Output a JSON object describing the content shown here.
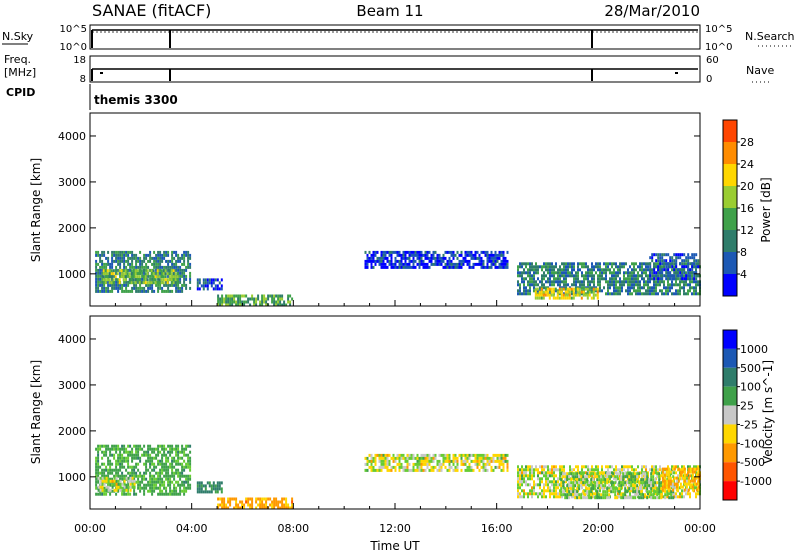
{
  "header": {
    "station": "SANAE (fitACF)",
    "beam": "Beam 11",
    "date": "28/Mar/2010"
  },
  "strip_nsky": {
    "left_label": "N.Sky",
    "ticks_left": [
      "10^5",
      "10^0"
    ],
    "ticks_right": [
      "10^5",
      "10^0"
    ],
    "right_label": "N.Search"
  },
  "strip_freq": {
    "left_label_1": "Freq.",
    "left_label_2": "[MHz]",
    "ticks_left": [
      "18",
      "8"
    ],
    "ticks_right": [
      "60",
      "0"
    ],
    "right_label": "Nave"
  },
  "cpid": {
    "label": "CPID",
    "value": "themis 3300"
  },
  "colors": {
    "power_scale": [
      "#0000ff",
      "#1c58b4",
      "#2f7d6b",
      "#3fa14a",
      "#9acd32",
      "#ffd700",
      "#ff8c00",
      "#ff4500",
      "#ff0000"
    ],
    "velocity_scale": [
      "#0000ff",
      "#1c58b4",
      "#2f7d6b",
      "#3fa14a",
      "#66cc33",
      "#c8c8c8",
      "#ffd700",
      "#ff9900",
      "#ff5500",
      "#ff0000"
    ]
  },
  "chart_data": [
    {
      "type": "heatmap",
      "panel": "power",
      "ylabel": "Slant Range [km]",
      "yticks": [
        "1000",
        "2000",
        "3000",
        "4000"
      ],
      "ylim": [
        300,
        4500
      ],
      "xlim": [
        "00:00",
        "24:00"
      ],
      "colorbar_label": "Power [dB]",
      "colorbar_ticks": [
        "4",
        "8",
        "12",
        "16",
        "20",
        "24",
        "28"
      ],
      "colorbar_range": [
        0,
        32
      ],
      "regions": [
        {
          "t": [
            0.2,
            4.0
          ],
          "r": [
            600,
            1500
          ],
          "value": 10
        },
        {
          "t": [
            0.5,
            3.5
          ],
          "r": [
            800,
            1100
          ],
          "value": 16
        },
        {
          "t": [
            4.2,
            5.2
          ],
          "r": [
            650,
            900
          ],
          "value": 6
        },
        {
          "t": [
            5.0,
            8.0
          ],
          "r": [
            300,
            550
          ],
          "value": 14
        },
        {
          "t": [
            10.8,
            16.5
          ],
          "r": [
            1100,
            1500
          ],
          "value": 4
        },
        {
          "t": [
            16.8,
            24.0
          ],
          "r": [
            550,
            1250
          ],
          "value": 10
        },
        {
          "t": [
            17.5,
            20.0
          ],
          "r": [
            450,
            700
          ],
          "value": 20
        },
        {
          "t": [
            22.0,
            24.0
          ],
          "r": [
            850,
            1450
          ],
          "value": 7
        }
      ]
    },
    {
      "type": "heatmap",
      "panel": "velocity",
      "ylabel": "Slant Range [km]",
      "yticks": [
        "1000",
        "2000",
        "3000",
        "4000"
      ],
      "ylim": [
        300,
        4500
      ],
      "xlabel": "Time UT",
      "xticks": [
        "00:00",
        "04:00",
        "08:00",
        "12:00",
        "16:00",
        "20:00",
        "00:00"
      ],
      "xlim": [
        "00:00",
        "24:00"
      ],
      "colorbar_label": "Velocity [m s^-1]",
      "colorbar_ticks": [
        "1000",
        "500",
        "100",
        "25",
        "-25",
        "-100",
        "-500",
        "-1000"
      ],
      "regions": [
        {
          "t": [
            0.2,
            4.0
          ],
          "r": [
            600,
            1700
          ],
          "value": 150
        },
        {
          "t": [
            0.3,
            1.8
          ],
          "r": [
            650,
            1000
          ],
          "value": 0
        },
        {
          "t": [
            4.2,
            5.2
          ],
          "r": [
            650,
            900
          ],
          "value": 300
        },
        {
          "t": [
            5.0,
            8.0
          ],
          "r": [
            300,
            550
          ],
          "value": -150
        },
        {
          "t": [
            10.8,
            16.5
          ],
          "r": [
            1100,
            1500
          ],
          "value": 0
        },
        {
          "t": [
            16.8,
            24.0
          ],
          "r": [
            550,
            1250
          ],
          "value": 0
        },
        {
          "t": [
            18.5,
            23.0
          ],
          "r": [
            500,
            1100
          ],
          "value": 60
        },
        {
          "t": [
            22.5,
            24.0
          ],
          "r": [
            700,
            1200
          ],
          "value": -120
        }
      ]
    }
  ]
}
